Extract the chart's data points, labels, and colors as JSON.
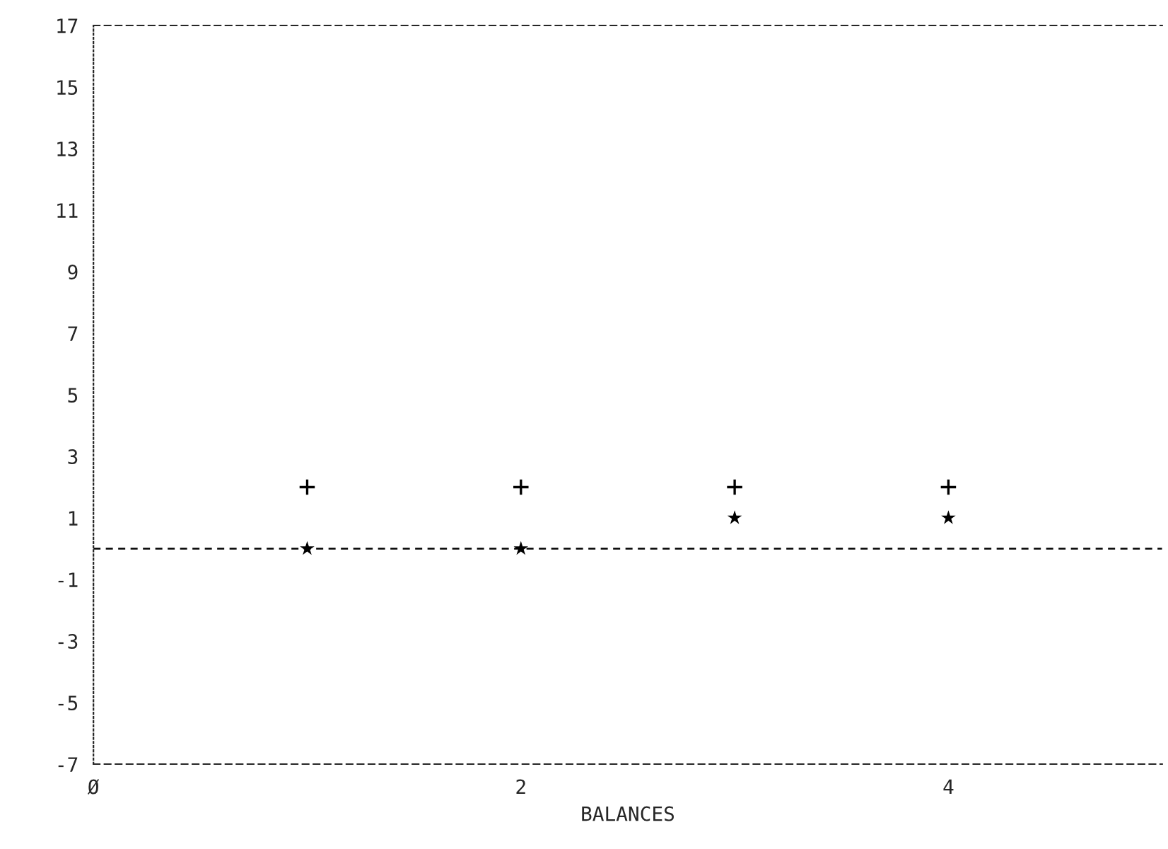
{
  "chart_data": {
    "type": "scatter",
    "xlabel": "BALANCES",
    "x": [
      1,
      2,
      3,
      4
    ],
    "series": [
      {
        "color": "#000000",
        "marker": "cross",
        "values": [
          2,
          2,
          2,
          2
        ]
      },
      {
        "color": "#000000",
        "marker": "star",
        "values": [
          0,
          0,
          1,
          1
        ]
      }
    ],
    "xlim": [
      0,
      5
    ],
    "xticks": [
      {
        "value": 0,
        "label": "Ø"
      },
      2,
      4
    ],
    "ylim": [
      -7,
      17
    ],
    "yticks": [
      -7,
      -5,
      -3,
      -1,
      1,
      3,
      5,
      7,
      9,
      11,
      13,
      15,
      17
    ],
    "ref_lines": [
      {
        "axis": "y",
        "value": 0,
        "color": "#000000",
        "line_style": "dashed"
      }
    ],
    "grid": false,
    "legend": false
  }
}
